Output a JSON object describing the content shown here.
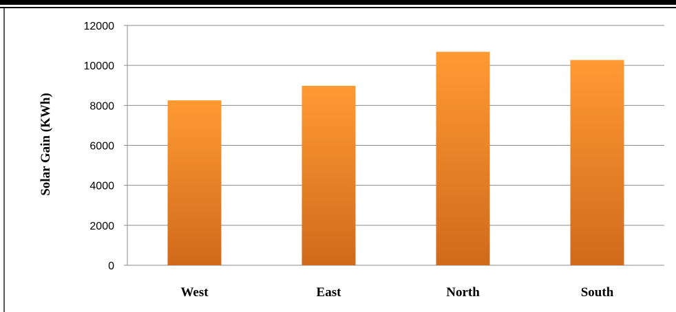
{
  "chart_data": {
    "type": "bar",
    "categories": [
      "West",
      "East",
      "North",
      "South"
    ],
    "values": [
      8250,
      8980,
      10680,
      10270
    ],
    "ylabel": "Solar Gain (KWh)",
    "xlabel": "",
    "ylim": [
      0,
      12000
    ],
    "yticks": [
      0,
      2000,
      4000,
      6000,
      8000,
      10000,
      12000
    ],
    "ytick_labels": [
      "0",
      "2000",
      "4000",
      "6000",
      "8000",
      "10000",
      "12000"
    ],
    "grid": "horizontal",
    "legend": "none",
    "bar_color_top": "#ff9a33",
    "bar_color_bottom": "#d06a1c"
  }
}
